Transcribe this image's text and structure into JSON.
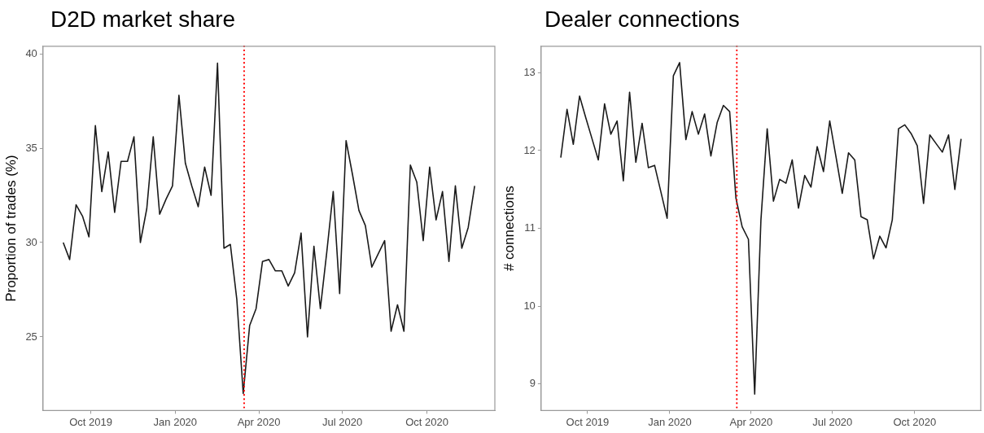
{
  "chart_data": [
    {
      "type": "line",
      "title": "D2D market share",
      "ylabel": "Proportion of trades (%)",
      "x": [
        "2019-09-01",
        "2019-09-08",
        "2019-09-15",
        "2019-09-22",
        "2019-09-29",
        "2019-10-06",
        "2019-10-13",
        "2019-10-20",
        "2019-10-27",
        "2019-11-03",
        "2019-11-10",
        "2019-11-17",
        "2019-11-24",
        "2019-12-01",
        "2019-12-08",
        "2019-12-15",
        "2019-12-22",
        "2019-12-29",
        "2020-01-05",
        "2020-01-12",
        "2020-01-19",
        "2020-01-26",
        "2020-02-02",
        "2020-02-09",
        "2020-02-16",
        "2020-02-23",
        "2020-03-01",
        "2020-03-08",
        "2020-03-15",
        "2020-03-22",
        "2020-03-29",
        "2020-04-05",
        "2020-04-12",
        "2020-04-19",
        "2020-04-26",
        "2020-05-03",
        "2020-05-10",
        "2020-05-17",
        "2020-05-24",
        "2020-05-31",
        "2020-06-07",
        "2020-06-14",
        "2020-06-21",
        "2020-06-28",
        "2020-07-05",
        "2020-07-12",
        "2020-07-19",
        "2020-07-26",
        "2020-08-02",
        "2020-08-09",
        "2020-08-16",
        "2020-08-23",
        "2020-08-30",
        "2020-09-06",
        "2020-09-13",
        "2020-09-20",
        "2020-09-27",
        "2020-10-04",
        "2020-10-11",
        "2020-10-18",
        "2020-10-25",
        "2020-11-01",
        "2020-11-08",
        "2020-11-15",
        "2020-11-22"
      ],
      "series": [
        {
          "color": "#1a1a1a",
          "values": [
            30.0,
            29.1,
            32.0,
            31.4,
            30.3,
            36.2,
            32.7,
            34.8,
            31.6,
            34.3,
            34.3,
            35.6,
            30.0,
            31.8,
            35.6,
            31.5,
            32.3,
            33.0,
            37.8,
            34.2,
            33.0,
            31.9,
            34.0,
            32.5,
            39.5,
            29.7,
            29.9,
            27.0,
            22.0,
            25.6,
            26.5,
            29.0,
            29.1,
            28.5,
            28.5,
            27.7,
            28.4,
            30.5,
            25.0,
            29.8,
            26.5,
            29.5,
            32.7,
            27.3,
            35.4,
            33.6,
            31.7,
            30.9,
            28.7,
            29.4,
            30.1,
            25.3,
            26.7,
            25.3,
            34.1,
            33.2,
            30.1,
            34.0,
            31.2,
            32.7,
            29.0,
            33.0,
            29.7,
            30.8,
            33.0
          ]
        }
      ],
      "xlim": [
        "2019-08-10",
        "2020-12-14"
      ],
      "xticks": [
        {
          "value": "2019-10-01",
          "label": "Oct 2019"
        },
        {
          "value": "2020-01-01",
          "label": "Jan 2020"
        },
        {
          "value": "2020-04-01",
          "label": "Apr 2020"
        },
        {
          "value": "2020-07-01",
          "label": "Jul 2020"
        },
        {
          "value": "2020-10-01",
          "label": "Oct 2020"
        }
      ],
      "ylim": [
        21.1,
        40.4
      ],
      "yticks": [
        25,
        30,
        35,
        40
      ],
      "ref_lines": [
        {
          "axis": "x",
          "value": "2020-03-16",
          "color": "#ff0000",
          "line_style": "dotted"
        }
      ],
      "grid": false,
      "legend": false,
      "marker": "none",
      "line_style": "solid"
    },
    {
      "type": "line",
      "title": "Dealer connections",
      "ylabel": "# connections",
      "x": [
        "2019-09-01",
        "2019-09-08",
        "2019-09-15",
        "2019-09-22",
        "2019-09-29",
        "2019-10-06",
        "2019-10-13",
        "2019-10-20",
        "2019-10-27",
        "2019-11-03",
        "2019-11-10",
        "2019-11-17",
        "2019-11-24",
        "2019-12-01",
        "2019-12-08",
        "2019-12-15",
        "2019-12-22",
        "2019-12-29",
        "2020-01-05",
        "2020-01-12",
        "2020-01-19",
        "2020-01-26",
        "2020-02-02",
        "2020-02-09",
        "2020-02-16",
        "2020-02-23",
        "2020-03-01",
        "2020-03-08",
        "2020-03-15",
        "2020-03-22",
        "2020-03-29",
        "2020-04-05",
        "2020-04-12",
        "2020-04-19",
        "2020-04-26",
        "2020-05-03",
        "2020-05-10",
        "2020-05-17",
        "2020-05-24",
        "2020-05-31",
        "2020-06-07",
        "2020-06-14",
        "2020-06-21",
        "2020-06-28",
        "2020-07-05",
        "2020-07-12",
        "2020-07-19",
        "2020-07-26",
        "2020-08-02",
        "2020-08-09",
        "2020-08-16",
        "2020-08-23",
        "2020-08-30",
        "2020-09-06",
        "2020-09-13",
        "2020-09-20",
        "2020-09-27",
        "2020-10-04",
        "2020-10-11",
        "2020-10-18",
        "2020-10-25",
        "2020-11-01",
        "2020-11-08",
        "2020-11-15",
        "2020-11-22"
      ],
      "series": [
        {
          "color": "#1a1a1a",
          "values": [
            11.91,
            12.53,
            12.08,
            12.7,
            12.42,
            12.15,
            11.88,
            12.6,
            12.21,
            12.38,
            11.61,
            12.75,
            11.85,
            12.35,
            11.78,
            11.81,
            11.47,
            11.13,
            12.96,
            13.13,
            12.14,
            12.5,
            12.21,
            12.47,
            11.93,
            12.36,
            12.58,
            12.5,
            11.39,
            11.02,
            10.86,
            8.87,
            11.11,
            12.28,
            11.35,
            11.63,
            11.58,
            11.88,
            11.26,
            11.68,
            11.53,
            12.05,
            11.73,
            12.38,
            11.92,
            11.45,
            11.97,
            11.88,
            11.15,
            11.11,
            10.61,
            10.9,
            10.75,
            11.11,
            12.28,
            12.33,
            12.22,
            12.06,
            11.32,
            12.2,
            12.09,
            11.98,
            12.2,
            11.5,
            12.15
          ]
        }
      ],
      "xlim": [
        "2019-08-10",
        "2020-12-14"
      ],
      "xticks": [
        {
          "value": "2019-10-01",
          "label": "Oct 2019"
        },
        {
          "value": "2020-01-01",
          "label": "Jan 2020"
        },
        {
          "value": "2020-04-01",
          "label": "Apr 2020"
        },
        {
          "value": "2020-07-01",
          "label": "Jul 2020"
        },
        {
          "value": "2020-10-01",
          "label": "Oct 2020"
        }
      ],
      "ylim": [
        8.66,
        13.34
      ],
      "yticks": [
        9,
        10,
        11,
        12,
        13
      ],
      "ref_lines": [
        {
          "axis": "x",
          "value": "2020-03-16",
          "color": "#ff0000",
          "line_style": "dotted"
        }
      ],
      "grid": false,
      "legend": false,
      "marker": "none",
      "line_style": "solid"
    }
  ]
}
